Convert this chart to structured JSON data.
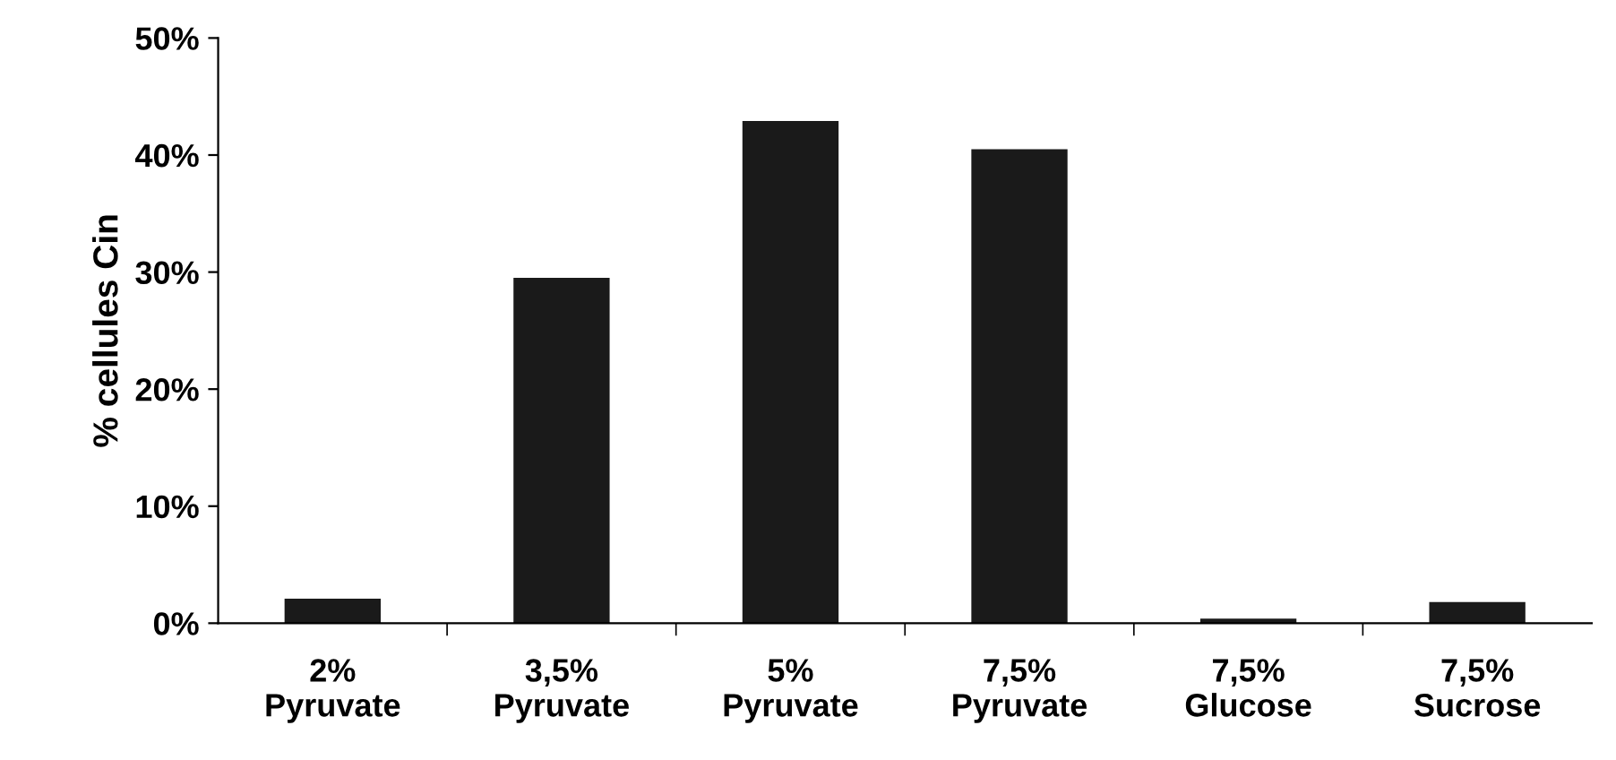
{
  "chart_data": {
    "type": "bar",
    "ylabel": "% cellules Cin",
    "categories": [
      "2%\nPyruvate",
      "3,5%\nPyruvate",
      "5%\nPyruvate",
      "7,5%\nPyruvate",
      "7,5%\nGlucose",
      "7,5%\nSucrose"
    ],
    "values": [
      2.1,
      29.5,
      42.9,
      40.5,
      0.4,
      1.8
    ],
    "color": "#1a1a1a",
    "ylim": [
      0,
      50
    ],
    "yticks": [
      {
        "value": 0,
        "label": "0%"
      },
      {
        "value": 10,
        "label": "10%"
      },
      {
        "value": 20,
        "label": "20%"
      },
      {
        "value": 30,
        "label": "30%"
      },
      {
        "value": 40,
        "label": "40%"
      },
      {
        "value": 50,
        "label": "50%"
      }
    ],
    "grid": false
  }
}
